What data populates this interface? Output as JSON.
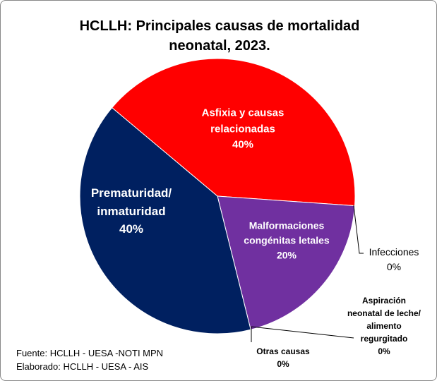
{
  "chart_data": {
    "type": "pie",
    "title": "HCLLH: Principales causas de mortalidad neonatal, 2023.",
    "categories": [
      "Asfixia y causas relacionadas",
      "Malformaciones congénitas letales",
      "Infecciones",
      "Aspiración neonatal de leche/ alimento regurgitado",
      "Otras causas",
      "Prematuridad/ inmaturidad"
    ],
    "values": [
      40,
      20,
      0,
      0,
      0,
      40
    ],
    "value_labels": [
      "40%",
      "20%",
      "0%",
      "0%",
      "0%",
      "40%"
    ],
    "colors": [
      "#ff0000",
      "#7030a0",
      null,
      null,
      null,
      "#002060"
    ],
    "source": [
      "Fuente: HCLLH - UESA -NOTI MPN",
      "Elaborado: HCLLH - UESA - AIS"
    ]
  }
}
